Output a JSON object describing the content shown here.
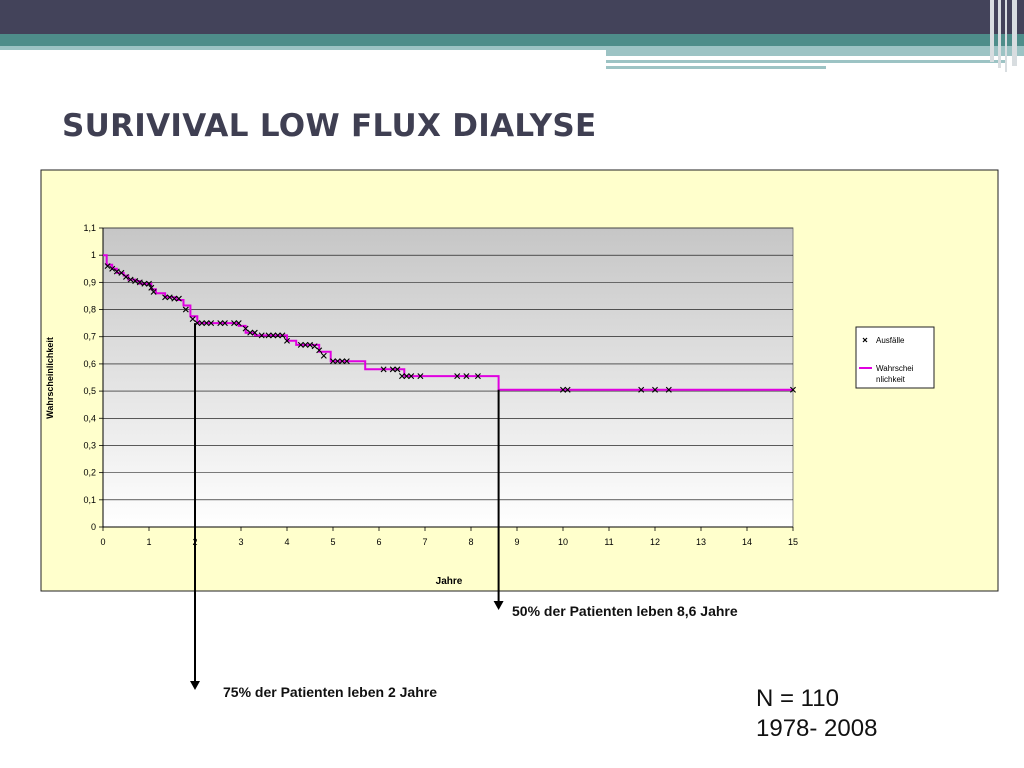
{
  "slide": {
    "title": "SURIVIVAL LOW FLUX DIALYSE",
    "annotation_50": "50% der Patienten leben  8,6 Jahre",
    "annotation_75": "75% der Patienten leben 2 Jahre",
    "n_label": "N = 110",
    "period_label": "1978- 2008"
  },
  "colors": {
    "header_dark": "#43435a",
    "header_teal": "#4e8d8a",
    "header_light": "#9cc3c4",
    "plot_background": "#c6c6c6",
    "chart_area": "#ffffcc",
    "step_line": "#e000e0",
    "marker": "#000000"
  },
  "chart_data": {
    "type": "line",
    "title": "",
    "xlabel": "Jahre",
    "ylabel": "Wahrscheinlichkeit",
    "xlim": [
      0,
      15
    ],
    "ylim": [
      0,
      1.1
    ],
    "xticks": [
      "0",
      "1",
      "2",
      "3",
      "4",
      "5",
      "6",
      "7",
      "8",
      "9",
      "10",
      "11",
      "12",
      "13",
      "14",
      "15"
    ],
    "yticks": [
      "0",
      "0,1",
      "0,2",
      "0,3",
      "0,4",
      "0,5",
      "0,6",
      "0,7",
      "0,8",
      "0,9",
      "1",
      "1,1"
    ],
    "grid": true,
    "legend_position": "right",
    "series": [
      {
        "name": "Ausfälle",
        "style": "markers-x",
        "x": [
          0.1,
          0.2,
          0.3,
          0.4,
          0.5,
          0.6,
          0.7,
          0.8,
          0.9,
          1.0,
          1.05,
          1.1,
          1.35,
          1.45,
          1.55,
          1.65,
          1.8,
          1.95,
          2.05,
          2.15,
          2.25,
          2.35,
          2.55,
          2.65,
          2.85,
          2.95,
          3.1,
          3.2,
          3.3,
          3.45,
          3.6,
          3.7,
          3.8,
          3.9,
          4.0,
          4.3,
          4.4,
          4.5,
          4.6,
          4.7,
          4.8,
          5.0,
          5.1,
          5.2,
          5.3,
          6.1,
          6.3,
          6.4,
          6.5,
          6.6,
          6.7,
          6.9,
          7.7,
          7.9,
          8.15,
          10.0,
          10.1,
          11.7,
          12.0,
          12.3,
          15.0
        ],
        "y": [
          0.96,
          0.95,
          0.94,
          0.935,
          0.92,
          0.91,
          0.905,
          0.9,
          0.895,
          0.895,
          0.88,
          0.865,
          0.845,
          0.845,
          0.84,
          0.84,
          0.8,
          0.765,
          0.75,
          0.75,
          0.75,
          0.75,
          0.75,
          0.75,
          0.75,
          0.75,
          0.73,
          0.715,
          0.715,
          0.705,
          0.705,
          0.705,
          0.705,
          0.705,
          0.685,
          0.67,
          0.67,
          0.67,
          0.665,
          0.65,
          0.63,
          0.61,
          0.61,
          0.61,
          0.61,
          0.58,
          0.58,
          0.58,
          0.555,
          0.555,
          0.555,
          0.555,
          0.555,
          0.555,
          0.555,
          0.505,
          0.505,
          0.505,
          0.505,
          0.505,
          0.505
        ]
      },
      {
        "name": "Wahrscheinlichkeit",
        "legend_label_lines": [
          "Wahrschei",
          "nlichkeit"
        ],
        "style": "step-line",
        "x": [
          0,
          0.08,
          0.08,
          0.2,
          0.2,
          0.3,
          0.3,
          0.45,
          0.45,
          0.55,
          0.55,
          0.7,
          0.7,
          0.8,
          0.8,
          1.05,
          1.05,
          1.15,
          1.15,
          1.35,
          1.35,
          1.6,
          1.6,
          1.75,
          1.75,
          1.9,
          1.9,
          2.05,
          2.05,
          2.95,
          2.95,
          3.1,
          3.1,
          3.3,
          3.3,
          4.0,
          4.0,
          4.2,
          4.2,
          4.7,
          4.7,
          4.95,
          4.95,
          5.7,
          5.7,
          6.55,
          6.55,
          8.6,
          8.6,
          15.0
        ],
        "y": [
          1.0,
          1.0,
          0.965,
          0.965,
          0.95,
          0.95,
          0.935,
          0.935,
          0.925,
          0.925,
          0.91,
          0.91,
          0.905,
          0.905,
          0.895,
          0.895,
          0.875,
          0.875,
          0.86,
          0.86,
          0.845,
          0.845,
          0.835,
          0.835,
          0.815,
          0.815,
          0.775,
          0.775,
          0.75,
          0.75,
          0.74,
          0.74,
          0.715,
          0.715,
          0.705,
          0.705,
          0.685,
          0.685,
          0.67,
          0.67,
          0.645,
          0.645,
          0.61,
          0.61,
          0.58,
          0.58,
          0.555,
          0.555,
          0.505,
          0.505
        ]
      }
    ],
    "legend": [
      {
        "label": "Ausfälle",
        "marker": "x"
      },
      {
        "label_lines": [
          "Wahrschei",
          "nlichkeit"
        ],
        "marker": "line"
      }
    ],
    "reference_markers": [
      {
        "x": 2,
        "label": "75% der Patienten leben 2 Jahre"
      },
      {
        "x": 8.6,
        "label": "50% der Patienten leben  8,6 Jahre"
      }
    ]
  }
}
